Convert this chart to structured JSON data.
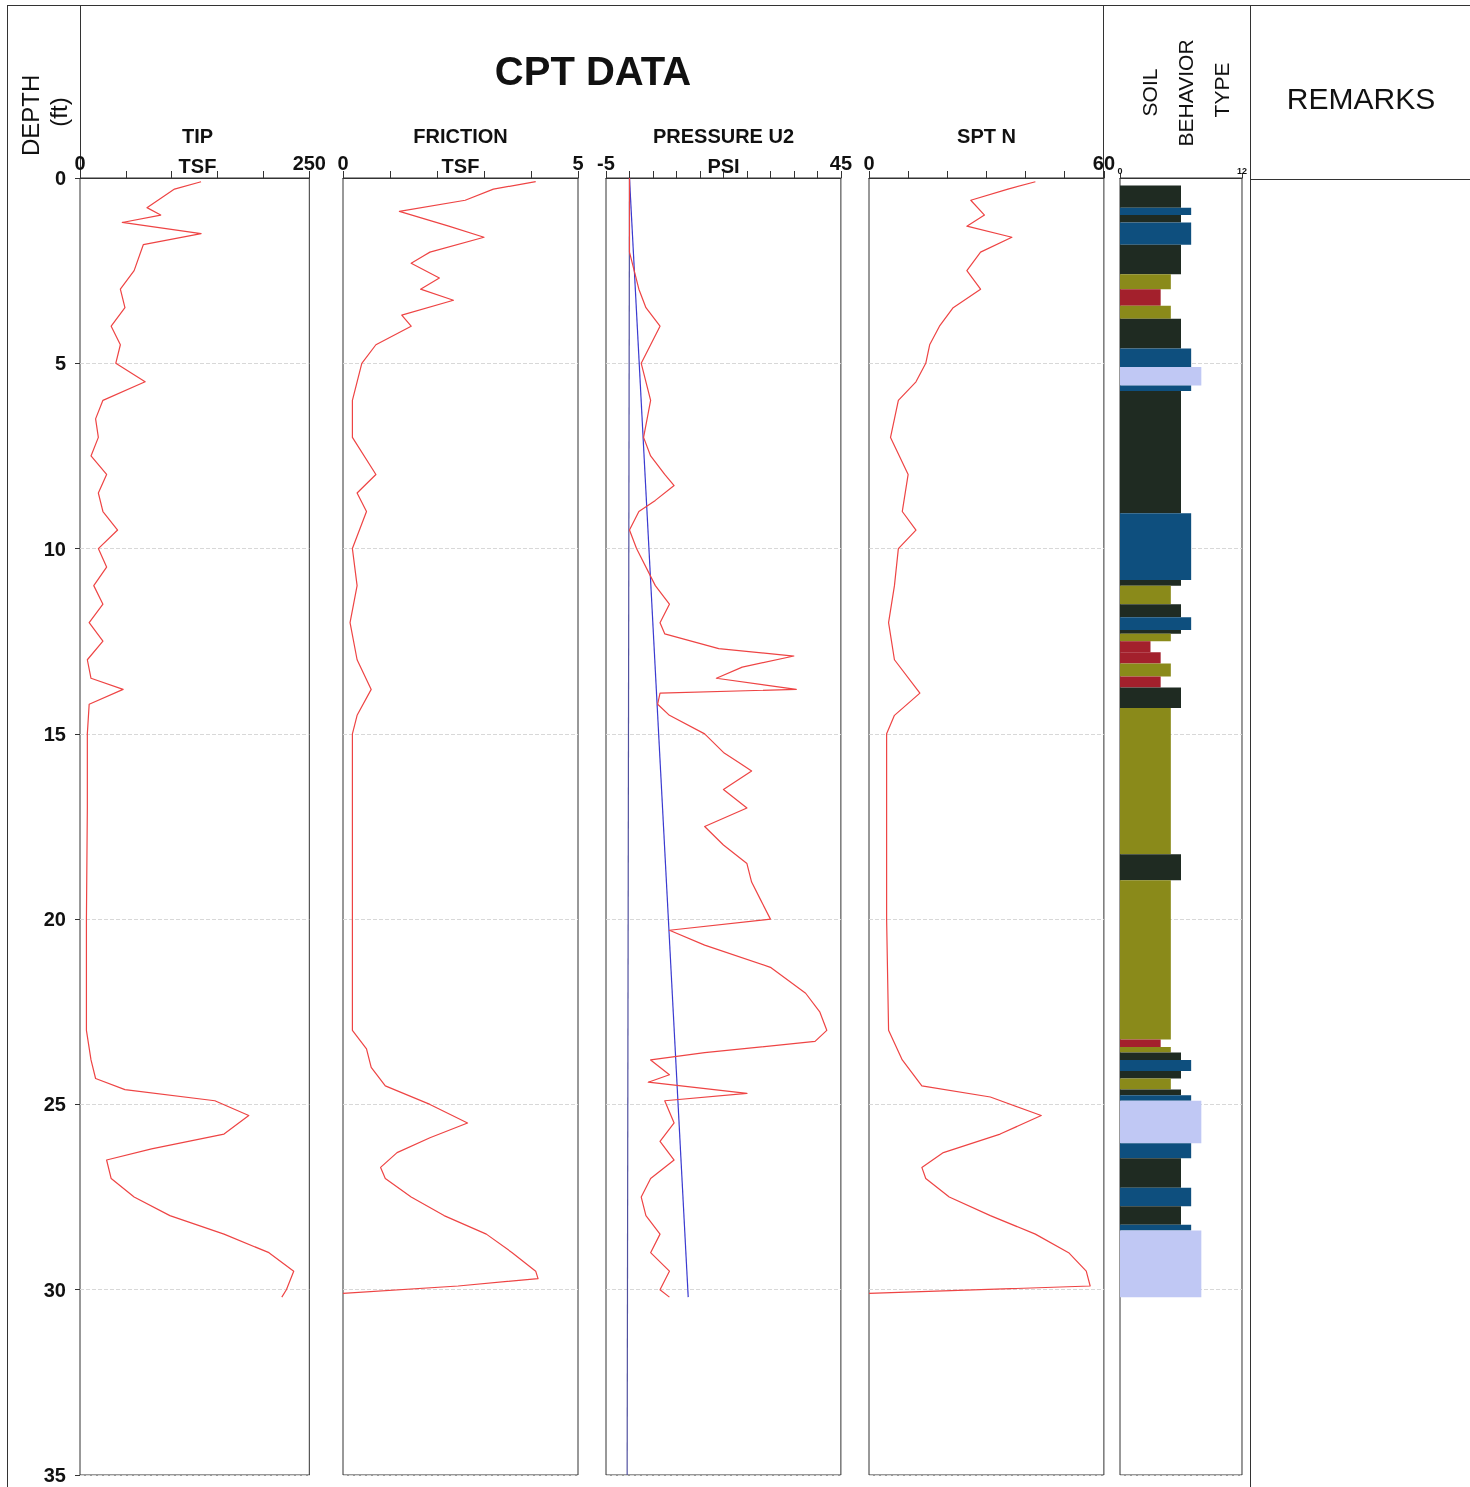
{
  "chart_data": [
    {
      "type": "other",
      "title": "CPT DATA"
    },
    {
      "type": "line",
      "title": "TIP",
      "xlabel": "TSF",
      "ylabel": "DEPTH (ft)",
      "xlim": [
        0,
        250
      ],
      "xticks": [
        0,
        {
          "value": 50,
          "label": null
        },
        {
          "value": 100,
          "label": null
        },
        {
          "value": 150,
          "label": null
        },
        {
          "value": 200,
          "label": null
        },
        250
      ],
      "ylim": [
        35,
        0
      ],
      "yticks": [
        0,
        5,
        10,
        15,
        20,
        25,
        30,
        35
      ],
      "grid": "y",
      "series": [
        {
          "color": "#ee4444",
          "x": [
            132,
            103,
            73,
            88,
            46,
            132,
            69,
            59,
            44,
            49,
            34,
            44,
            39,
            71,
            25,
            17,
            20,
            12,
            29,
            20,
            25,
            41,
            20,
            29,
            15,
            25,
            10,
            25,
            8,
            12,
            47,
            10,
            8,
            8,
            7,
            7,
            12,
            17,
            49,
            147,
            184,
            157,
            78,
            29,
            34,
            59,
            98,
            157,
            206,
            233,
            225,
            220
          ],
          "values": [
            0.1,
            0.3,
            0.8,
            1.0,
            1.2,
            1.5,
            1.8,
            2.5,
            3,
            3.5,
            4,
            4.5,
            5,
            5.5,
            6,
            6.5,
            7,
            7.5,
            8,
            8.5,
            9,
            9.5,
            10,
            10.5,
            11,
            11.5,
            12,
            12.5,
            13,
            13.5,
            13.8,
            14.2,
            15,
            17,
            20,
            23,
            23.8,
            24.3,
            24.6,
            24.9,
            25.3,
            25.8,
            26.2,
            26.5,
            27,
            27.5,
            28,
            28.5,
            29,
            29.5,
            30,
            30.2
          ]
        }
      ]
    },
    {
      "type": "line",
      "title": "FRICTION",
      "xlabel": "TSF",
      "xlim": [
        0,
        5
      ],
      "xticks": [
        0,
        {
          "value": 1,
          "label": null
        },
        {
          "value": 2,
          "label": null
        },
        {
          "value": 3,
          "label": null
        },
        {
          "value": 4,
          "label": null
        },
        5
      ],
      "ylim": [
        35,
        0
      ],
      "yticks": [
        0,
        5,
        10,
        15,
        20,
        25,
        30,
        35
      ],
      "grid": "y",
      "tick_labels": "x",
      "series": [
        {
          "color": "#ee4444",
          "x": [
            4.1,
            3.2,
            2.6,
            1.2,
            2.25,
            3.0,
            1.85,
            1.45,
            2.05,
            1.65,
            2.35,
            1.25,
            1.45,
            0.7,
            0.4,
            0.3,
            0.2,
            0.2,
            0.7,
            0.3,
            0.5,
            0.2,
            0.3,
            0.15,
            0.3,
            0.6,
            0.3,
            0.2,
            0.2,
            0.2,
            0.5,
            0.6,
            0.9,
            1.85,
            2.65,
            1.85,
            1.15,
            0.8,
            0.9,
            1.45,
            2.15,
            3.05,
            3.6,
            4.1,
            4.15,
            2.45,
            0
          ],
          "values": [
            0.1,
            0.3,
            0.6,
            0.9,
            1.3,
            1.6,
            2,
            2.3,
            2.7,
            3,
            3.3,
            3.7,
            4,
            4.5,
            5,
            5.5,
            6,
            7,
            8,
            8.5,
            9,
            10,
            11,
            12,
            13,
            13.8,
            14.5,
            15,
            22,
            23,
            23.5,
            24,
            24.5,
            25,
            25.5,
            25.9,
            26.3,
            26.7,
            27,
            27.5,
            28,
            28.5,
            29,
            29.5,
            29.7,
            29.9,
            30.1
          ]
        }
      ]
    },
    {
      "type": "line",
      "title": "PRESSURE U2",
      "xlabel": "PSI",
      "xlim": [
        -5,
        45
      ],
      "xticks": [
        -5,
        {
          "value": 0,
          "label": null
        },
        {
          "value": 5,
          "label": null
        },
        {
          "value": 10,
          "label": null
        },
        {
          "value": 15,
          "label": null
        },
        {
          "value": 20,
          "label": null
        },
        {
          "value": 25,
          "label": null
        },
        {
          "value": 30,
          "label": null
        },
        {
          "value": 35,
          "label": null
        },
        {
          "value": 40,
          "label": null
        },
        45
      ],
      "ylim": [
        35,
        0
      ],
      "yticks": [
        0,
        5,
        10,
        15,
        20,
        25,
        30,
        35
      ],
      "grid": "y",
      "tick_labels": "x",
      "series": [
        {
          "color": "#5050a0",
          "x": [
            0,
            -0.5
          ],
          "values": [
            0,
            35
          ]
        },
        {
          "color": "#3a3ad0",
          "x": [
            0,
            12.5
          ],
          "values": [
            0,
            30.2
          ]
        },
        {
          "color": "#ee4444",
          "x": [
            0,
            0,
            1,
            2,
            3.5,
            6.5,
            4.5,
            2.5,
            4.5,
            3,
            4.5,
            7.5,
            9.5,
            5.5,
            2,
            0,
            1.5,
            5.5,
            8.5,
            6.5,
            7.5,
            19,
            35,
            24,
            18.5,
            35.5,
            6.5,
            6,
            8.5,
            16,
            20,
            26,
            20,
            25,
            16,
            20,
            25,
            26,
            28,
            30,
            8.5,
            16,
            30,
            37.5,
            40.5,
            42,
            39.5,
            16,
            4.5,
            8.5,
            4,
            25,
            7.5,
            9.5,
            6.5,
            9.5,
            4.5,
            2.5,
            3.5,
            6.5,
            4.5,
            8.5,
            6.5,
            8.5
          ],
          "values": [
            0,
            2,
            2.5,
            3,
            3.5,
            4,
            4.5,
            5,
            6,
            7,
            7.5,
            8,
            8.3,
            8.7,
            9,
            9.5,
            10,
            11,
            11.5,
            12,
            12.3,
            12.7,
            12.9,
            13.2,
            13.5,
            13.8,
            13.9,
            14.2,
            14.5,
            15,
            15.5,
            16,
            16.5,
            17,
            17.5,
            18,
            18.5,
            19,
            19.5,
            20,
            20.3,
            20.7,
            21.3,
            22,
            22.5,
            23,
            23.3,
            23.6,
            23.8,
            24.2,
            24.4,
            24.7,
            24.9,
            25.5,
            26,
            26.5,
            27,
            27.5,
            28,
            28.5,
            29,
            29.5,
            30,
            30.2
          ]
        }
      ]
    },
    {
      "type": "line",
      "title": "SPT N",
      "xlim": [
        0,
        60
      ],
      "xticks": [
        0,
        {
          "value": 10,
          "label": null
        },
        {
          "value": 20,
          "label": null
        },
        {
          "value": 30,
          "label": null
        },
        {
          "value": 40,
          "label": null
        },
        {
          "value": 50,
          "label": null
        },
        60
      ],
      "ylim": [
        35,
        0
      ],
      "yticks": [
        0,
        5,
        10,
        15,
        20,
        25,
        30,
        35
      ],
      "grid": "y",
      "tick_labels": "x",
      "series": [
        {
          "color": "#ee4444",
          "x": [
            42.5,
            35.5,
            26,
            29.5,
            25,
            36.5,
            28.5,
            25,
            28.5,
            21.5,
            18,
            15.5,
            14.5,
            12,
            7.5,
            6.5,
            5.5,
            10,
            8.5,
            12,
            7.5,
            6.5,
            5,
            6.5,
            13,
            6.5,
            4.5,
            4.5,
            5,
            8.5,
            13.5,
            31,
            44,
            33.5,
            19,
            13.5,
            14.5,
            20.5,
            31,
            42.5,
            51,
            55.5,
            56.5,
            0
          ],
          "values": [
            0.1,
            0.3,
            0.6,
            1,
            1.3,
            1.6,
            2,
            2.5,
            3,
            3.5,
            4,
            4.5,
            5,
            5.5,
            6,
            6.5,
            7,
            8,
            9,
            9.5,
            10,
            11,
            12,
            13,
            13.9,
            14.5,
            15,
            20,
            23,
            23.8,
            24.5,
            24.8,
            25.3,
            25.8,
            26.3,
            26.7,
            27,
            27.5,
            28,
            28.5,
            29,
            29.5,
            29.9,
            30.1
          ]
        }
      ]
    },
    {
      "type": "histogram",
      "orientation": "horizontal",
      "title": "SOIL BEHAVIOR TYPE",
      "xlim": [
        0,
        12
      ],
      "xticks": [
        0,
        12
      ],
      "ylim": [
        35,
        0
      ],
      "yticks": [
        0,
        5,
        10,
        15,
        20,
        25,
        30,
        35
      ],
      "grid": "y",
      "tick_labels": "x",
      "bins": [
        0.2,
        0.8,
        1.0,
        1.2,
        1.8,
        2.6,
        3.0,
        3.45,
        3.8,
        4.6,
        5.1,
        5.6,
        5.75,
        9.05,
        10.85,
        11.0,
        11.5,
        11.85,
        12.2,
        12.3,
        12.5,
        12.8,
        13.1,
        13.45,
        13.75,
        14.3,
        18.25,
        18.95,
        23.25,
        23.45,
        23.6,
        23.8,
        24.1,
        24.3,
        24.6,
        24.75,
        24.9,
        26.05,
        26.45,
        27.25,
        27.75,
        28.25,
        28.4,
        30.2
      ],
      "values": [
        6,
        7,
        6,
        7,
        6,
        5,
        4,
        5,
        6,
        7,
        8,
        7,
        6,
        7,
        6,
        5,
        6,
        7,
        6,
        5,
        3,
        4,
        5,
        4,
        6,
        5,
        6,
        5,
        4,
        5,
        6,
        7,
        6,
        5,
        6,
        7,
        8,
        7,
        6,
        7,
        6,
        7,
        8
      ],
      "colors": [
        "#1f2b22",
        "#0e4f7e",
        "#1f2b22",
        "#0e4f7e",
        "#1f2b22",
        "#8a8a1a",
        "#a3202c",
        "#8a8a1a",
        "#1f2b22",
        "#0e4f7e",
        "#c0c8f4",
        "#0e4f7e",
        "#1f2b22",
        "#0e4f7e",
        "#1f2b22",
        "#8a8a1a",
        "#1f2b22",
        "#0e4f7e",
        "#1f2b22",
        "#8a8a1a",
        "#a3202c",
        "#a3202c",
        "#8a8a1a",
        "#a3202c",
        "#1f2b22",
        "#8a8a1a",
        "#1f2b22",
        "#8a8a1a",
        "#a3202c",
        "#8a8a1a",
        "#1f2b22",
        "#0e4f7e",
        "#1f2b22",
        "#8a8a1a",
        "#1f2b22",
        "#0e4f7e",
        "#c0c8f4",
        "#0e4f7e",
        "#1f2b22",
        "#0e4f7e",
        "#1f2b22",
        "#0e4f7e",
        "#c0c8f4"
      ]
    },
    {
      "type": "other",
      "title": "REMARKS"
    }
  ]
}
